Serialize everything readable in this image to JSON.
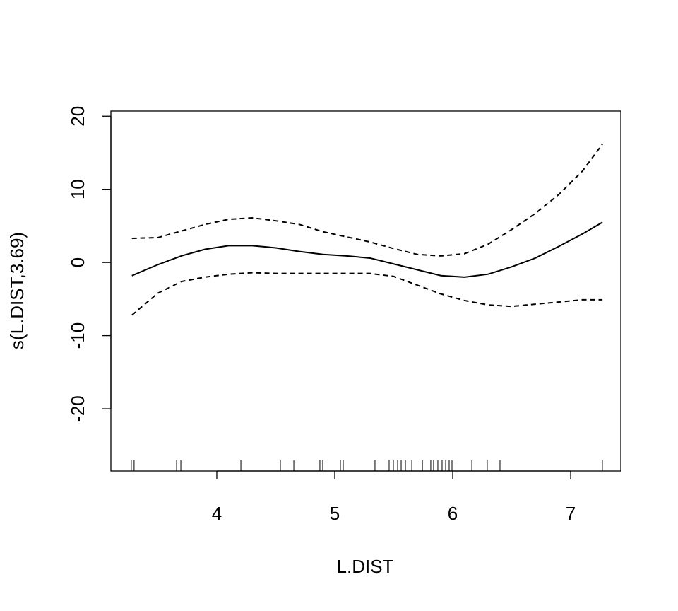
{
  "chart_data": {
    "type": "line",
    "x_label": "L.DIST",
    "y_label": "s(L.DIST,3.69)",
    "x": [
      3.28,
      3.5,
      3.7,
      3.9,
      4.1,
      4.3,
      4.5,
      4.7,
      4.9,
      5.1,
      5.3,
      5.5,
      5.7,
      5.9,
      6.1,
      6.3,
      6.5,
      6.7,
      6.9,
      7.1,
      7.27
    ],
    "series": [
      {
        "color": "#000000",
        "dashed": false,
        "values": [
          -1.8,
          -0.3,
          0.9,
          1.8,
          2.3,
          2.3,
          2.0,
          1.5,
          1.1,
          0.9,
          0.6,
          -0.2,
          -1.0,
          -1.8,
          -2.0,
          -1.6,
          -0.6,
          0.6,
          2.2,
          3.9,
          5.5
        ]
      },
      {
        "color": "#000000",
        "dashed": true,
        "values": [
          3.3,
          3.4,
          4.3,
          5.2,
          5.9,
          6.1,
          5.7,
          5.2,
          4.2,
          3.5,
          2.8,
          1.9,
          1.1,
          0.9,
          1.2,
          2.5,
          4.5,
          6.7,
          9.3,
          12.5,
          16.2
        ]
      },
      {
        "color": "#000000",
        "dashed": true,
        "values": [
          -7.2,
          -4.2,
          -2.6,
          -2.0,
          -1.6,
          -1.4,
          -1.5,
          -1.5,
          -1.5,
          -1.5,
          -1.5,
          -1.9,
          -3.1,
          -4.3,
          -5.2,
          -5.8,
          -6.0,
          -5.7,
          -5.4,
          -5.1,
          -5.1
        ]
      }
    ],
    "rug": [
      3.275,
      3.299,
      3.659,
      3.695,
      4.204,
      4.539,
      4.653,
      4.874,
      4.898,
      5.048,
      5.072,
      5.341,
      5.461,
      5.497,
      5.533,
      5.563,
      5.599,
      5.653,
      5.743,
      5.814,
      5.838,
      5.874,
      5.91,
      5.94,
      5.97,
      5.994,
      6.162,
      6.293,
      6.401,
      7.269
    ],
    "xlim": [
      3.102,
      7.425
    ],
    "ylim": [
      -28.5,
      20.7
    ],
    "xticks": [
      4,
      5,
      6,
      7
    ],
    "yticks": [
      -20,
      -10,
      0,
      10,
      20
    ]
  }
}
